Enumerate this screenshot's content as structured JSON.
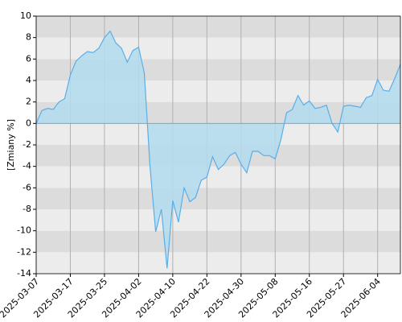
{
  "chart_data": {
    "type": "area",
    "ylabel": "[Zmiany %]",
    "categories": [
      "2025-03-07",
      null,
      null,
      null,
      null,
      null,
      "2025-03-17",
      null,
      null,
      null,
      null,
      null,
      "2025-03-25",
      null,
      null,
      null,
      null,
      null,
      "2025-04-02",
      null,
      null,
      null,
      null,
      null,
      "2025-04-10",
      null,
      null,
      null,
      null,
      null,
      "2025-04-22",
      null,
      null,
      null,
      null,
      null,
      "2025-04-30",
      null,
      null,
      null,
      null,
      null,
      "2025-05-08",
      null,
      null,
      null,
      null,
      null,
      "2025-05-16",
      null,
      null,
      null,
      null,
      null,
      "2025-05-27",
      null,
      null,
      null,
      null,
      null,
      "2025-06-04",
      null,
      null,
      null,
      null
    ],
    "values": [
      0.0,
      1.2,
      1.4,
      1.3,
      2.0,
      2.3,
      4.5,
      5.8,
      6.3,
      6.7,
      6.6,
      7.0,
      8.0,
      8.6,
      7.5,
      7.0,
      5.7,
      6.8,
      7.1,
      4.7,
      -4.0,
      -10.1,
      -8.0,
      -13.5,
      -7.2,
      -9.2,
      -6.0,
      -7.3,
      -6.9,
      -5.3,
      -5.0,
      -3.1,
      -4.3,
      -3.8,
      -3.0,
      -2.7,
      -3.8,
      -4.6,
      -2.6,
      -2.6,
      -3.0,
      -3.0,
      -3.3,
      -1.5,
      1.0,
      1.3,
      2.6,
      1.7,
      2.1,
      1.4,
      1.5,
      1.7,
      0.0,
      -0.8,
      1.6,
      1.7,
      1.6,
      1.5,
      2.4,
      2.6,
      4.1,
      3.1,
      3.0,
      4.2,
      5.5
    ],
    "color": "#5aaee8",
    "fill": "#b3dcef",
    "ylim": [
      -14,
      10
    ],
    "yticks": [
      -14,
      -12,
      -10,
      -8,
      -6,
      -4,
      -2,
      0,
      2,
      4,
      6,
      8,
      10
    ],
    "band_colors": [
      "#ececec",
      "#dcdcdc"
    ],
    "grid": true
  }
}
